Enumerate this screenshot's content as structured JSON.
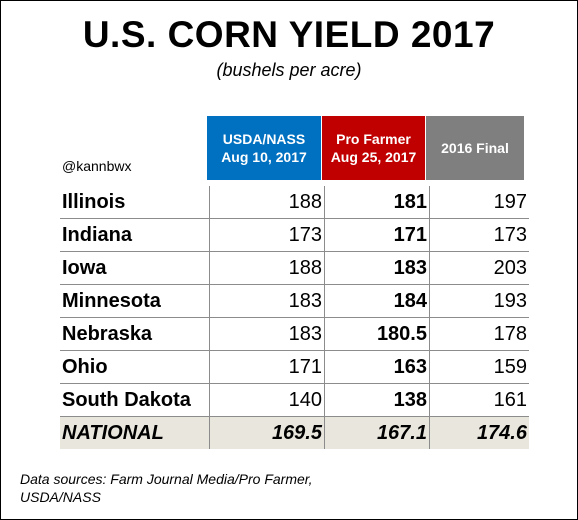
{
  "title": "U.S. CORN YIELD 2017",
  "subtitle": "(bushels per acre)",
  "handle": "@kannbwx",
  "columns": [
    {
      "line1": "USDA/NASS",
      "line2": "Aug 10, 2017",
      "color": "#0070c0"
    },
    {
      "line1": "Pro Farmer",
      "line2": "Aug 25, 2017",
      "color": "#c00000"
    },
    {
      "line1": "2016 Final",
      "line2": "",
      "color": "#7f7f7f"
    }
  ],
  "rows": [
    {
      "state": "Illinois",
      "usda": "188",
      "profarmer": "181",
      "final2016": "197"
    },
    {
      "state": "Indiana",
      "usda": "173",
      "profarmer": "171",
      "final2016": "173"
    },
    {
      "state": "Iowa",
      "usda": "188",
      "profarmer": "183",
      "final2016": "203"
    },
    {
      "state": "Minnesota",
      "usda": "183",
      "profarmer": "184",
      "final2016": "193"
    },
    {
      "state": "Nebraska",
      "usda": "183",
      "profarmer": "180.5",
      "final2016": "178"
    },
    {
      "state": "Ohio",
      "usda": "171",
      "profarmer": "163",
      "final2016": "159"
    },
    {
      "state": "South Dakota",
      "usda": "140",
      "profarmer": "138",
      "final2016": "161"
    }
  ],
  "national": {
    "state": "NATIONAL",
    "usda": "169.5",
    "profarmer": "167.1",
    "final2016": "174.6"
  },
  "source": {
    "line1": "Data sources: Farm Journal Media/Pro Farmer,",
    "line2": "USDA/NASS"
  }
}
